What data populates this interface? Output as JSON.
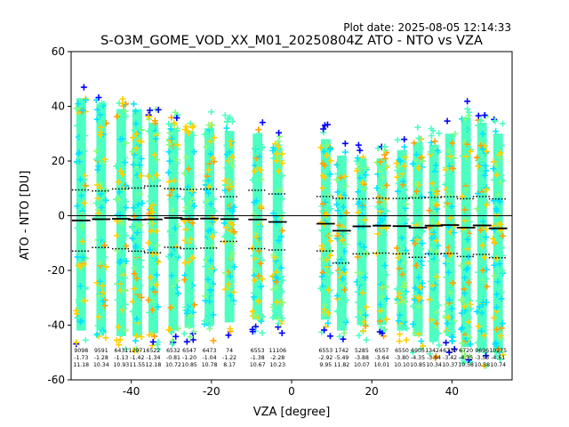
{
  "plot_date": "Plot date: 2025-08-05 12:14:33",
  "chart_data": {
    "type": "scatter",
    "title": "S-O3M_GOME_VOD_XX_M01_20250804Z ATO - NTO vs VZA",
    "xlabel": "VZA [degree]",
    "ylabel": "ATO - NTO [DU]",
    "xlim": [
      -55,
      55
    ],
    "ylim": [
      -60,
      60
    ],
    "xticks": [
      -40,
      -20,
      0,
      20,
      40
    ],
    "yticks": [
      -60,
      -40,
      -20,
      0,
      20,
      40,
      60
    ],
    "grid": false,
    "zero_line": 0,
    "bins": [
      {
        "x": -52.5,
        "count": "9098",
        "mean": "-1.73",
        "std": "11.18",
        "top": 49,
        "bottom": -48
      },
      {
        "x": -47.5,
        "count": "9591",
        "mean": "-1.28",
        "std": "10.34",
        "top": 47,
        "bottom": -48
      },
      {
        "x": -42.5,
        "count": "6431",
        "mean": "-1.13",
        "std": "10.93",
        "top": 45,
        "bottom": -50
      },
      {
        "x": -38.5,
        "count": "12971",
        "mean": "-1.42",
        "std": "11.55",
        "top": 45,
        "bottom": -50
      },
      {
        "x": -34.5,
        "count": "6522",
        "mean": "-1.34",
        "std": "12.18",
        "top": 40,
        "bottom": -49
      },
      {
        "x": -29.5,
        "count": "6532",
        "mean": "-0.81",
        "std": "10.72",
        "top": 38,
        "bottom": -48
      },
      {
        "x": -25.5,
        "count": "6547",
        "mean": "-1.20",
        "std": "10.85",
        "top": 37,
        "bottom": -47
      },
      {
        "x": -20.5,
        "count": "6473",
        "mean": "-1.04",
        "std": "10.78",
        "top": 38,
        "bottom": -46
      },
      {
        "x": -15.5,
        "count": "74",
        "mean": "-1.22",
        "std": "8.17",
        "top": 37,
        "bottom": -45
      },
      {
        "x": -8.5,
        "count": "6553",
        "mean": "-1.38",
        "std": "10.67",
        "top": 36,
        "bottom": -44
      },
      {
        "x": -3.5,
        "count": "11106",
        "mean": "-2.28",
        "std": "10.23",
        "top": 31,
        "bottom": -44
      },
      {
        "x": 8.5,
        "count": "6553",
        "mean": "-2.92",
        "std": "9.95",
        "top": 34,
        "bottom": -44
      },
      {
        "x": 12.5,
        "count": "1742",
        "mean": "-5.49",
        "std": "11.82",
        "top": 28,
        "bottom": -48
      },
      {
        "x": 17.5,
        "count": "5285",
        "mean": "-3.88",
        "std": "10.07",
        "top": 27,
        "bottom": -46
      },
      {
        "x": 22.5,
        "count": "6557",
        "mean": "-3.64",
        "std": "10.01",
        "top": 27,
        "bottom": -46
      },
      {
        "x": 27.5,
        "count": "6550",
        "mean": "-3.80",
        "std": "10.10",
        "top": 30,
        "bottom": -48
      },
      {
        "x": 31.5,
        "count": "6905",
        "mean": "-4.35",
        "std": "10.85",
        "top": 33,
        "bottom": -50
      },
      {
        "x": 35.5,
        "count": "13424",
        "mean": "-3.64",
        "std": "10.34",
        "top": 32,
        "bottom": -52
      },
      {
        "x": 39.5,
        "count": "6730",
        "mean": "-3.42",
        "std": "10.37",
        "top": 36,
        "bottom": -50
      },
      {
        "x": 43.5,
        "count": "6720",
        "mean": "-4.35",
        "std": "10.58",
        "top": 42,
        "bottom": -54
      },
      {
        "x": 47.5,
        "count": "9696",
        "mean": "-3.55",
        "std": "10.58",
        "top": 40,
        "bottom": -55
      },
      {
        "x": 51.5,
        "count": "10275",
        "mean": "-4.61",
        "std": "10.74",
        "top": 36,
        "bottom": -56
      }
    ],
    "mean_line": {
      "color": "#000000"
    },
    "std_lines": {
      "color": "#000000",
      "style": "dotted"
    },
    "colors": {
      "dense": "#4dffc0",
      "mid": "#00e5ff",
      "sparse": "#ffd000",
      "edge": "#0000ff",
      "orange": "#ffa000",
      "light": "#80ff80"
    }
  }
}
